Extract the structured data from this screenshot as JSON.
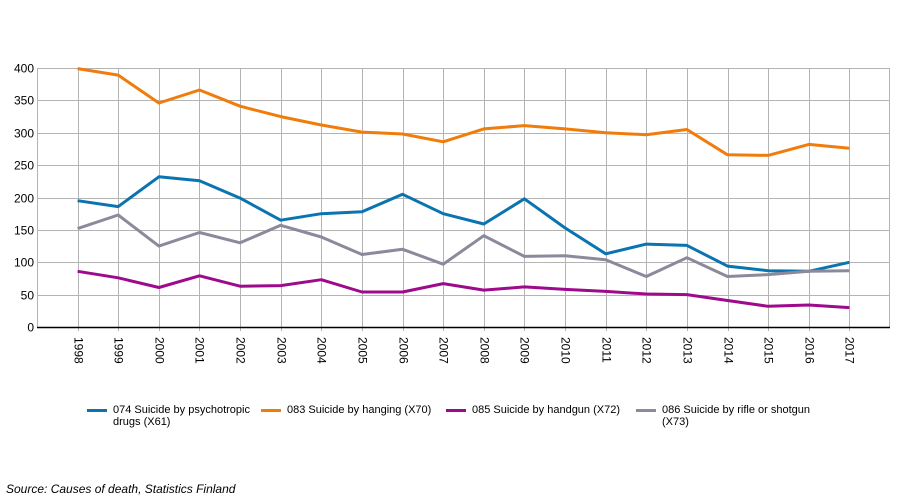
{
  "chart_data": {
    "type": "line",
    "title": "",
    "xlabel": "",
    "ylabel": "",
    "ylim": [
      0,
      400
    ],
    "yticks": [
      0,
      50,
      100,
      150,
      200,
      250,
      300,
      350,
      400
    ],
    "grid": true,
    "legend_position": "bottom",
    "categories": [
      "1998",
      "1999",
      "2000",
      "2001",
      "2002",
      "2003",
      "2004",
      "2005",
      "2006",
      "2007",
      "2008",
      "2009",
      "2010",
      "2011",
      "2012",
      "2013",
      "2014",
      "2015",
      "2016",
      "2017"
    ],
    "series": [
      {
        "name": "074 Suicide by psychotropic drugs (X61)",
        "color": "#0a74b0",
        "values": [
          195,
          186,
          232,
          226,
          199,
          165,
          175,
          178,
          205,
          175,
          159,
          198,
          153,
          113,
          128,
          126,
          94,
          87,
          86,
          100
        ]
      },
      {
        "name": "083 Suicide by hanging (X70)",
        "color": "#f07c0c",
        "values": [
          399,
          389,
          346,
          366,
          341,
          325,
          312,
          301,
          298,
          286,
          306,
          311,
          306,
          300,
          297,
          305,
          266,
          265,
          282,
          276
        ]
      },
      {
        "name": "085 Suicide by handgun (X72)",
        "color": "#9e0a8c",
        "values": [
          86,
          76,
          61,
          79,
          63,
          64,
          73,
          54,
          54,
          67,
          57,
          62,
          58,
          55,
          51,
          50,
          41,
          32,
          34,
          30
        ]
      },
      {
        "name": "086 Suicide by rifle or shotgun (X73)",
        "color": "#8a8a9c",
        "values": [
          152,
          173,
          125,
          146,
          130,
          157,
          139,
          112,
          120,
          97,
          141,
          109,
          110,
          104,
          78,
          107,
          78,
          81,
          86,
          87
        ]
      }
    ]
  },
  "legend": {
    "items": [
      {
        "label": "074 Suicide by psychotropic drugs (X61)",
        "color": "#0a74b0"
      },
      {
        "label": "083 Suicide by hanging (X70)",
        "color": "#f07c0c"
      },
      {
        "label": "085 Suicide by handgun (X72)",
        "color": "#9e0a8c"
      },
      {
        "label": "086 Suicide by rifle or shotgun (X73)",
        "color": "#8a8a9c"
      }
    ]
  },
  "source": "Source: Causes of death, Statistics Finland"
}
